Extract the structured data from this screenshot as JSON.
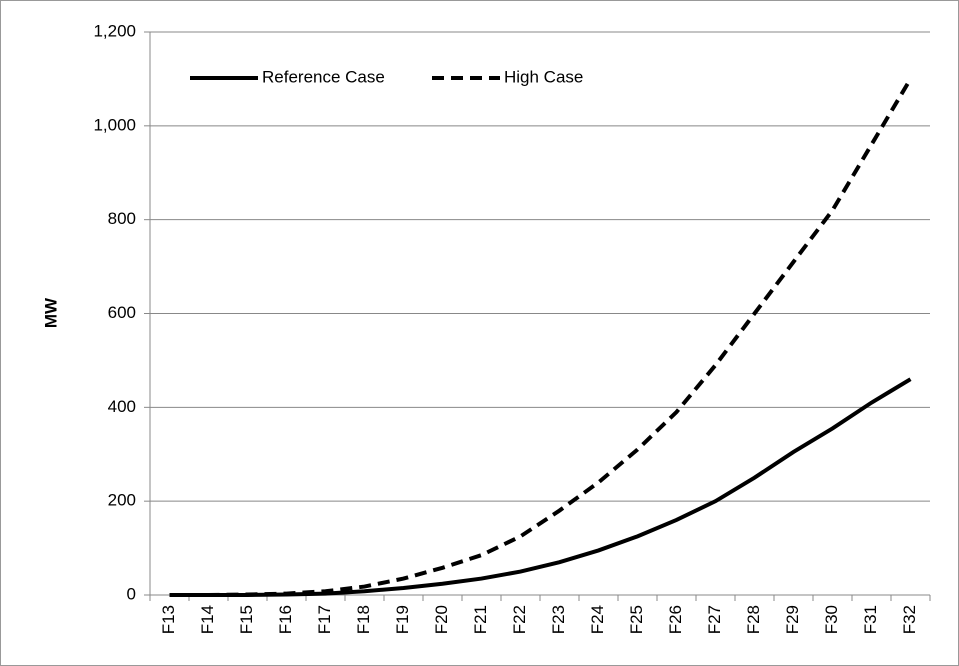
{
  "chart_data": {
    "type": "line",
    "y_label": "MW",
    "categories": [
      "F13",
      "F14",
      "F15",
      "F16",
      "F17",
      "F18",
      "F19",
      "F20",
      "F21",
      "F22",
      "F23",
      "F24",
      "F25",
      "F26",
      "F27",
      "F28",
      "F29",
      "F30",
      "F31",
      "F32"
    ],
    "series": [
      {
        "name": "Reference Case",
        "color": "#000000",
        "dash": false,
        "values": [
          0,
          0,
          0,
          1,
          3,
          8,
          15,
          24,
          35,
          50,
          70,
          95,
          125,
          160,
          200,
          250,
          305,
          355,
          410,
          460
        ]
      },
      {
        "name": "High Case",
        "color": "#000000",
        "dash": true,
        "values": [
          0,
          0,
          1,
          3,
          8,
          18,
          35,
          58,
          85,
          125,
          180,
          240,
          310,
          390,
          490,
          600,
          710,
          820,
          960,
          1100
        ]
      }
    ],
    "ylim": [
      0,
      1200
    ],
    "yticks": [
      0,
      200,
      400,
      600,
      800,
      {
        "value": 1000,
        "label": "1,000"
      },
      {
        "value": 1200,
        "label": "1,200"
      }
    ],
    "grid": true,
    "legend": "top-left"
  }
}
